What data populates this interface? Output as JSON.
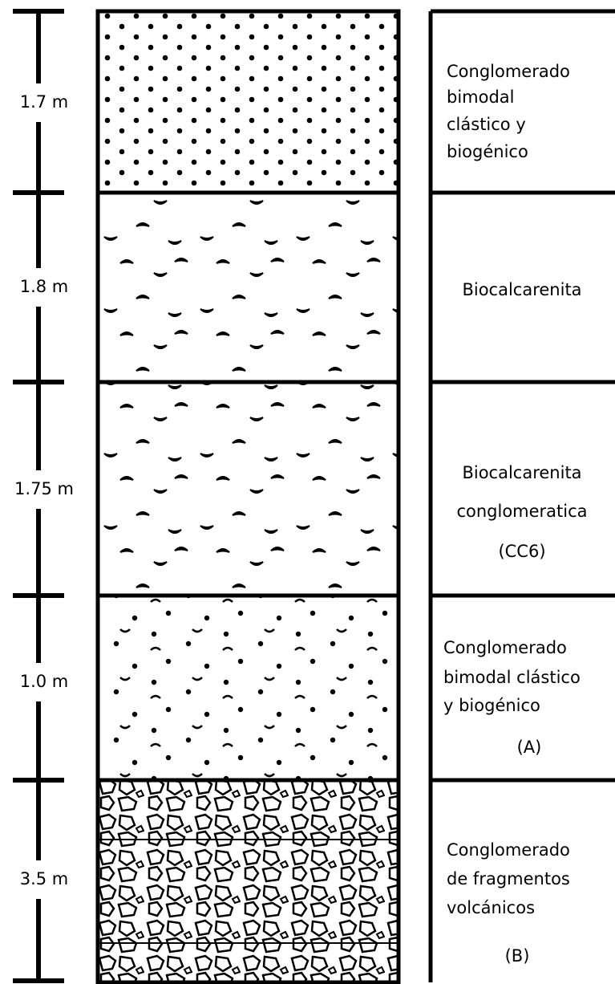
{
  "layers": [
    {
      "thickness": "1.7 m",
      "description": [
        "Conglomerado",
        "bimodal",
        "clástico y",
        "biogénico"
      ]
    },
    {
      "thickness": "1.8 m",
      "description": [
        "Biocalcarenita"
      ]
    },
    {
      "thickness": "1.75 m",
      "description": [
        "Biocalcarenita",
        "conglomeratica",
        "(CC6)"
      ]
    },
    {
      "thickness": "1.0 m",
      "description": [
        "Conglomerado",
        "bimodal clástico",
        "y biogénico",
        "(A)"
      ]
    },
    {
      "thickness": "3.5 m",
      "description": [
        "Conglomerado",
        "de fragmentos",
        "volcánicos",
        "(B)"
      ]
    }
  ]
}
